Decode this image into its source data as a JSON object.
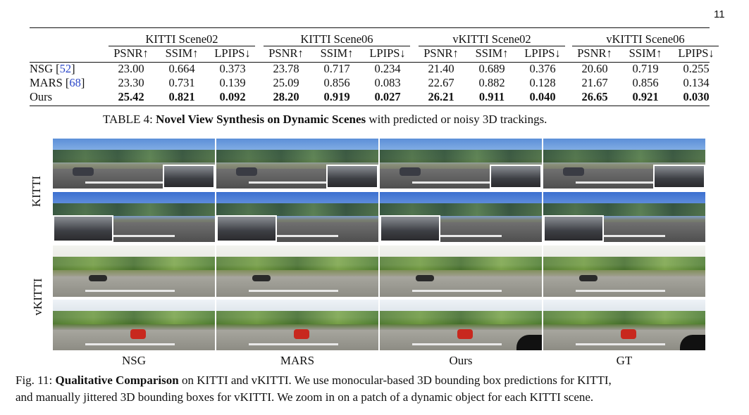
{
  "page_number": "11",
  "table": {
    "groups": [
      "KITTI Scene02",
      "KITTI Scene06",
      "vKITTI Scene02",
      "vKITTI Scene06"
    ],
    "metrics": [
      "PSNR↑",
      "SSIM↑",
      "LPIPS↓"
    ],
    "rows": [
      {
        "method": "NSG",
        "ref": "52",
        "values": [
          "23.00",
          "0.664",
          "0.373",
          "23.78",
          "0.717",
          "0.234",
          "21.40",
          "0.689",
          "0.376",
          "20.60",
          "0.719",
          "0.255"
        ],
        "bold": false
      },
      {
        "method": "MARS",
        "ref": "68",
        "values": [
          "23.30",
          "0.731",
          "0.139",
          "25.09",
          "0.856",
          "0.083",
          "22.67",
          "0.882",
          "0.128",
          "21.67",
          "0.856",
          "0.134"
        ],
        "bold": false
      },
      {
        "method": "Ours",
        "ref": "",
        "values": [
          "25.42",
          "0.821",
          "0.092",
          "28.20",
          "0.919",
          "0.027",
          "26.21",
          "0.911",
          "0.040",
          "26.65",
          "0.921",
          "0.030"
        ],
        "bold": true
      }
    ],
    "caption": {
      "prefix": "TABLE 4: ",
      "bold": "Novel View Synthesis on Dynamic Scenes",
      "rest": " with predicted or noisy 3D trackings."
    }
  },
  "figure": {
    "row_labels": [
      "KITTI",
      "vKITTI"
    ],
    "column_labels": [
      "NSG",
      "MARS",
      "Ours",
      "GT"
    ],
    "caption": {
      "prefix": "Fig. 11: ",
      "bold": "Qualitative Comparison",
      "line1_rest": " on KITTI and vKITTI. We use monocular-based 3D bounding box predictions for KITTI,",
      "line2": "and manually jittered 3D bounding boxes for vKITTI. We zoom in on a patch of a dynamic object for each KITTI scene."
    }
  }
}
